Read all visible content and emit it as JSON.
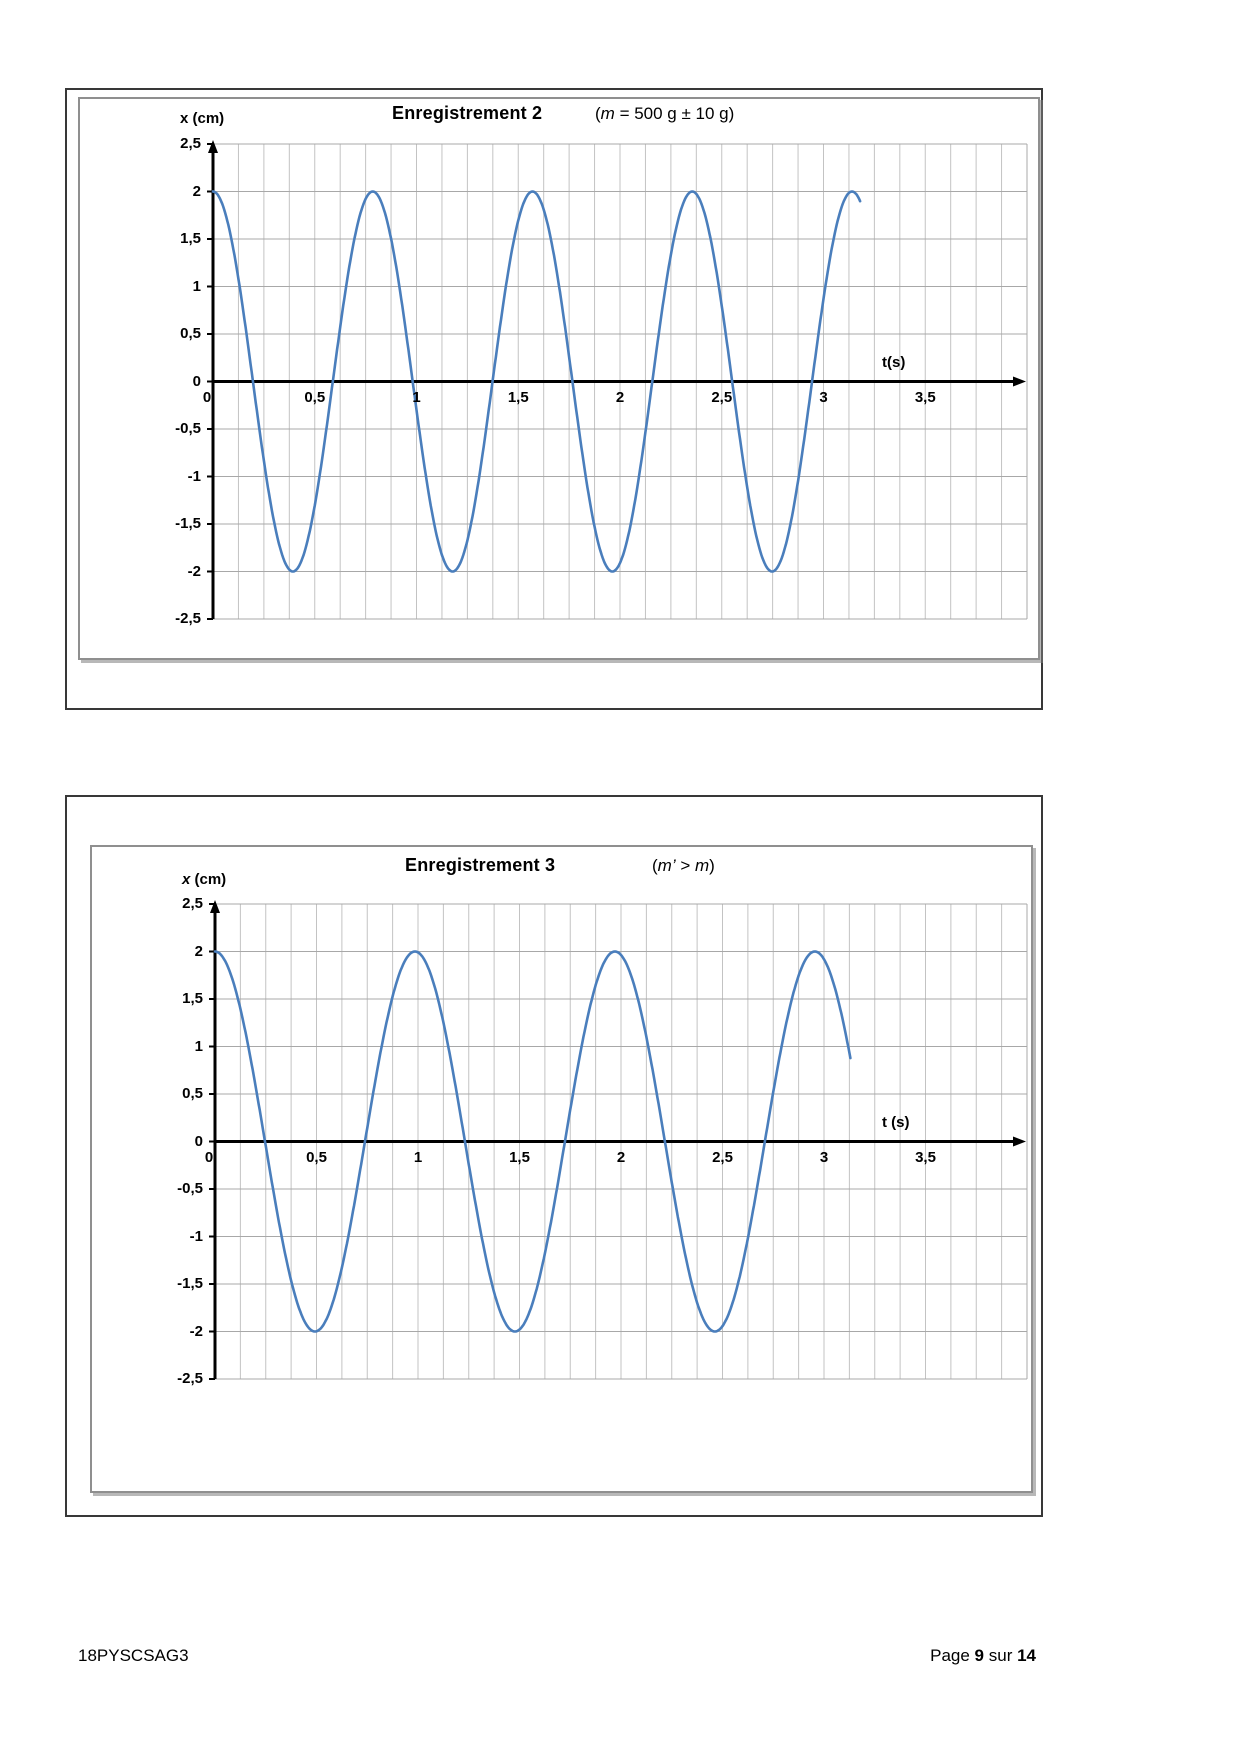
{
  "page_type": "exam-document-page",
  "footer": {
    "left": "18PYSCSAG3",
    "right_parts": [
      {
        "text": "Page ",
        "bold": false
      },
      {
        "text": "9",
        "bold": true
      },
      {
        "text": " sur ",
        "bold": false
      },
      {
        "text": "14",
        "bold": true
      }
    ]
  },
  "charts": [
    {
      "title": "Enregistrement 2",
      "subtitle_parts": [
        {
          "text": "(",
          "italic": false
        },
        {
          "text": "m",
          "italic": true
        },
        {
          "text": " = 500 g ± 10 g)",
          "italic": false
        }
      ],
      "y_axis_label_parts": [
        {
          "text": "x",
          "italic": false
        },
        {
          "text": " (cm)",
          "italic": false
        }
      ],
      "x_axis_label": "t(s)",
      "x_ticks": [
        {
          "t": 0,
          "label": "0"
        },
        {
          "t": 0.5,
          "label": "0,5"
        },
        {
          "t": 1,
          "label": "1"
        },
        {
          "t": 1.5,
          "label": "1,5"
        },
        {
          "t": 2,
          "label": "2"
        },
        {
          "t": 2.5,
          "label": "2,5"
        },
        {
          "t": 3,
          "label": "3"
        },
        {
          "t": 3.5,
          "label": "3,5"
        }
      ],
      "y_ticks": [
        {
          "v": 2.5,
          "label": "2,5"
        },
        {
          "v": 2,
          "label": "2"
        },
        {
          "v": 1.5,
          "label": "1,5"
        },
        {
          "v": 1,
          "label": "1"
        },
        {
          "v": 0.5,
          "label": "0,5"
        },
        {
          "v": 0,
          "label": "0"
        },
        {
          "v": -0.5,
          "label": "-0,5"
        },
        {
          "v": -1,
          "label": "-1"
        },
        {
          "v": -1.5,
          "label": "-1,5"
        },
        {
          "v": -2,
          "label": "-2"
        },
        {
          "v": -2.5,
          "label": "-2,5"
        }
      ],
      "chart_data": {
        "type": "line",
        "function": "x(t) = 2·cos(2πt/T)",
        "amplitude_cm": 2,
        "period_s": 0.785,
        "t_start": 0,
        "t_end": 3.18,
        "xlim": [
          0,
          4
        ],
        "ylim": [
          -2.5,
          2.5
        ],
        "x_major_unit_s": 0.5,
        "x_minor_unit_s": 0.125,
        "y_major_unit_cm": 0.5,
        "maxima_t_s": [
          0,
          0.785,
          1.57,
          2.355,
          3.14
        ],
        "minima_t_s": [
          0.3925,
          1.1775,
          1.9625,
          2.7475
        ],
        "max_value_cm": 2,
        "min_value_cm": -2,
        "curve_color": "#4a7ebc",
        "grid": "on",
        "legend": "none"
      }
    },
    {
      "title": "Enregistrement 3",
      "subtitle_parts": [
        {
          "text": "(",
          "italic": false
        },
        {
          "text": "m’",
          "italic": true
        },
        {
          "text": " > ",
          "italic": false
        },
        {
          "text": "m",
          "italic": true
        },
        {
          "text": ")",
          "italic": false
        }
      ],
      "y_axis_label_parts": [
        {
          "text": "x",
          "italic": true
        },
        {
          "text": " (cm)",
          "italic": false
        }
      ],
      "x_axis_label": "t (s)",
      "x_ticks": [
        {
          "t": 0,
          "label": "0"
        },
        {
          "t": 0.5,
          "label": "0,5"
        },
        {
          "t": 1,
          "label": "1"
        },
        {
          "t": 1.5,
          "label": "1,5"
        },
        {
          "t": 2,
          "label": "2"
        },
        {
          "t": 2.5,
          "label": "2,5"
        },
        {
          "t": 3,
          "label": "3"
        },
        {
          "t": 3.5,
          "label": "3,5"
        }
      ],
      "y_ticks": [
        {
          "v": 2.5,
          "label": "2,5"
        },
        {
          "v": 2,
          "label": "2"
        },
        {
          "v": 1.5,
          "label": "1,5"
        },
        {
          "v": 1,
          "label": "1"
        },
        {
          "v": 0.5,
          "label": "0,5"
        },
        {
          "v": 0,
          "label": "0"
        },
        {
          "v": -0.5,
          "label": "-0,5"
        },
        {
          "v": -1,
          "label": "-1"
        },
        {
          "v": -1.5,
          "label": "-1,5"
        },
        {
          "v": -2,
          "label": "-2"
        },
        {
          "v": -2.5,
          "label": "-2,5"
        }
      ],
      "chart_data": {
        "type": "line",
        "function": "x(t) = 2·cos(2πt/T')",
        "amplitude_cm": 2,
        "period_s": 0.985,
        "t_start": 0,
        "t_end": 3.13,
        "xlim": [
          0,
          4
        ],
        "ylim": [
          -2.5,
          2.5
        ],
        "x_major_unit_s": 0.5,
        "x_minor_unit_s": 0.125,
        "y_major_unit_cm": 0.5,
        "maxima_t_s": [
          0,
          0.985,
          1.97,
          2.955
        ],
        "minima_t_s": [
          0.4925,
          1.4775,
          2.4625
        ],
        "max_value_cm": 2,
        "min_value_cm": -2,
        "end_value_cm": 0.85,
        "curve_color": "#4a7ebc",
        "grid": "on",
        "legend": "none"
      }
    }
  ],
  "colors": {
    "curve_blue": "#4a7ebc",
    "h_gridline": "#a8a8a8",
    "v_gridline": "#c3c3c3",
    "axis_black": "#000000",
    "outer_box_border": "#383838",
    "frame_border": "#8f8f8f"
  }
}
